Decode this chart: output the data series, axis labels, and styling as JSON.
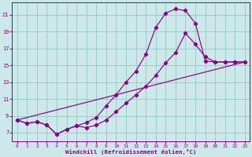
{
  "xlabel": "Windchill (Refroidissement éolien,°C)",
  "background_color": "#cce8e8",
  "grid_color": "#99cccc",
  "line_color": "#880088",
  "xlim_min": -0.5,
  "xlim_max": 23.5,
  "ylim_min": 6.0,
  "ylim_max": 22.5,
  "xticks": [
    0,
    1,
    2,
    3,
    4,
    5,
    6,
    7,
    8,
    9,
    10,
    11,
    12,
    13,
    14,
    15,
    16,
    17,
    18,
    19,
    20,
    21,
    22,
    23
  ],
  "yticks": [
    7,
    9,
    11,
    13,
    15,
    17,
    19,
    21
  ],
  "curve1_x": [
    0,
    1,
    2,
    3,
    4,
    5,
    6,
    7,
    8,
    9,
    10,
    11,
    12,
    13,
    14,
    15,
    16,
    17,
    18,
    19,
    20,
    21,
    22,
    23
  ],
  "curve1_y": [
    8.5,
    8.1,
    8.3,
    7.9,
    6.8,
    7.4,
    7.8,
    8.2,
    8.8,
    10.2,
    11.5,
    13.0,
    14.3,
    16.3,
    19.5,
    21.2,
    21.7,
    21.5,
    20.0,
    15.5,
    15.4,
    15.4,
    15.4,
    15.4
  ],
  "curve2_x": [
    0,
    1,
    2,
    3,
    4,
    5,
    6,
    7,
    8,
    9,
    10,
    11,
    12,
    13,
    14,
    15,
    16,
    17,
    18,
    19,
    20,
    21,
    22,
    23
  ],
  "curve2_y": [
    8.5,
    8.1,
    8.3,
    7.9,
    6.8,
    7.4,
    7.8,
    7.6,
    7.9,
    8.5,
    9.5,
    10.5,
    11.5,
    12.5,
    13.8,
    15.3,
    16.5,
    18.8,
    17.5,
    16.0,
    15.4,
    15.4,
    15.4,
    15.4
  ],
  "curve3_x": [
    0,
    23
  ],
  "curve3_y": [
    8.5,
    15.4
  ]
}
